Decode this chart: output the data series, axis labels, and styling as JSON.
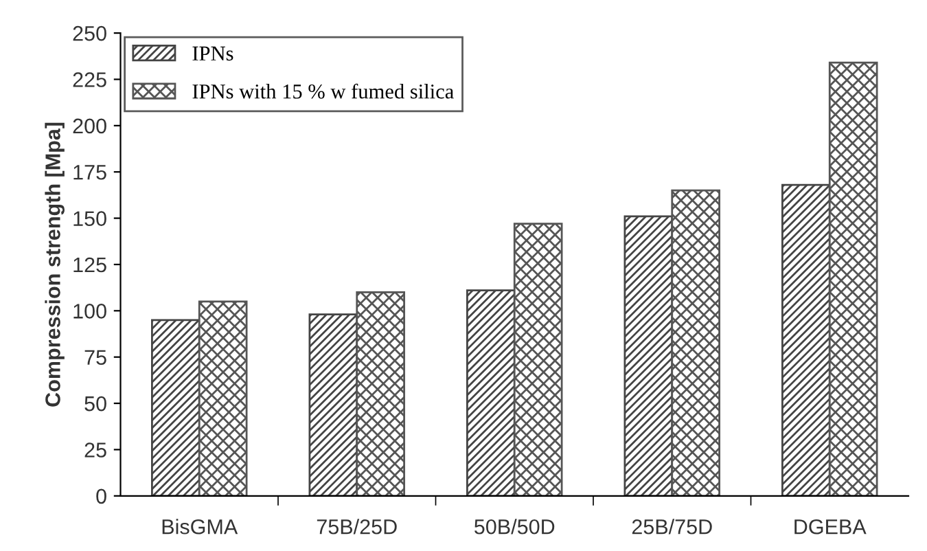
{
  "chart_data": {
    "type": "bar",
    "ylabel": "Compression strength [Mpa]",
    "categories": [
      "BisGMA",
      "75B/25D",
      "50B/50D",
      "25B/75D",
      "DGEBA"
    ],
    "series": [
      {
        "name": "IPNs",
        "color": "#444444",
        "values": [
          95,
          98,
          111,
          151,
          168
        ]
      },
      {
        "name": "IPNs with 15 % w fumed silica",
        "color": "#555555",
        "values": [
          105,
          110,
          147,
          165,
          234
        ]
      }
    ],
    "ylim": [
      0,
      250
    ],
    "yticks": [
      0,
      25,
      50,
      75,
      100,
      125,
      150,
      175,
      200,
      225,
      250
    ],
    "grid": false,
    "legend": "top left"
  }
}
